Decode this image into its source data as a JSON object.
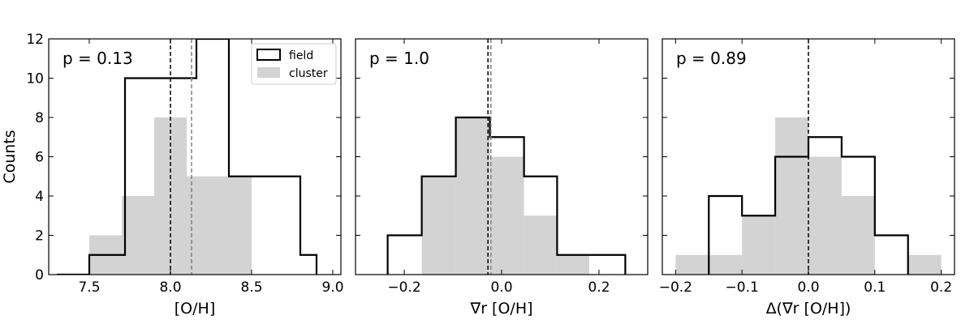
{
  "chart_data": [
    {
      "type": "histogram",
      "xlabel": "[O/H]",
      "ylabel": "Counts",
      "annotation": "p = 0.13",
      "xlim": [
        7.25,
        9.05
      ],
      "ylim": [
        0,
        12
      ],
      "xticks": [
        7.5,
        8.0,
        8.5,
        9.0
      ],
      "xtick_labels": [
        "7.5",
        "8.0",
        "8.5",
        "9.0"
      ],
      "yticks": [
        0,
        2,
        4,
        6,
        8,
        10,
        12
      ],
      "ytick_labels": [
        "0",
        "2",
        "4",
        "6",
        "8",
        "10",
        "12"
      ],
      "legend": {
        "location": "upper right",
        "entries": [
          "field",
          "cluster"
        ]
      },
      "cluster": {
        "bins": [
          7.5,
          7.7,
          7.9,
          8.1,
          8.3,
          8.5,
          8.7,
          8.9
        ],
        "counts": [
          2,
          4,
          8,
          5,
          5,
          0,
          0,
          1
        ]
      },
      "field": {
        "bins": [
          7.3,
          7.5,
          7.72,
          8.16,
          8.36,
          8.8,
          8.9
        ],
        "counts": [
          0,
          1,
          10,
          12,
          5,
          1,
          0
        ]
      },
      "medians": {
        "field": 8.0,
        "cluster": 8.13
      }
    },
    {
      "type": "histogram",
      "xlabel": "∇r [O/H]",
      "ylabel": "",
      "annotation": "p = 1.0",
      "xlim": [
        -0.3,
        0.3
      ],
      "ylim": [
        0,
        12
      ],
      "xticks": [
        -0.2,
        0.0,
        0.2
      ],
      "xtick_labels": [
        "−0.2",
        "0.0",
        "0.2"
      ],
      "yticks": [
        0,
        2,
        4,
        6,
        8,
        10,
        12
      ],
      "ytick_labels": [],
      "cluster": {
        "bins": [
          -0.164,
          -0.094,
          -0.024,
          0.046,
          0.114,
          0.18
        ],
        "counts": [
          5,
          8,
          6,
          3,
          1
        ]
      },
      "field": {
        "bins": [
          -0.234,
          -0.164,
          -0.094,
          -0.024,
          0.046,
          0.114,
          0.184,
          0.254
        ],
        "counts": [
          2,
          5,
          8,
          7,
          5,
          1,
          1
        ]
      },
      "medians": {
        "field": -0.028,
        "cluster": -0.022
      }
    },
    {
      "type": "histogram",
      "xlabel": "Δ(∇r [O/H])",
      "ylabel": "",
      "annotation": "p = 0.89",
      "xlim": [
        -0.22,
        0.22
      ],
      "ylim": [
        0,
        12
      ],
      "xticks": [
        -0.2,
        -0.1,
        0.0,
        0.1,
        0.2
      ],
      "xtick_labels": [
        "−0.2",
        "−0.1",
        "0.0",
        "0.1",
        "0.2"
      ],
      "yticks": [
        0,
        2,
        4,
        6,
        8,
        10,
        12
      ],
      "ytick_labels": [],
      "cluster": {
        "bins": [
          -0.2,
          -0.15,
          -0.1,
          -0.05,
          0.0,
          0.05,
          0.1,
          0.15,
          0.2
        ],
        "counts": [
          1,
          1,
          3,
          8,
          6,
          4,
          0,
          1
        ]
      },
      "field": {
        "bins": [
          -0.15,
          -0.1,
          -0.05,
          0.0,
          0.05,
          0.1,
          0.15
        ],
        "counts": [
          4,
          3,
          6,
          7,
          6,
          2
        ]
      },
      "medians": {
        "field": 0.0
      }
    }
  ]
}
